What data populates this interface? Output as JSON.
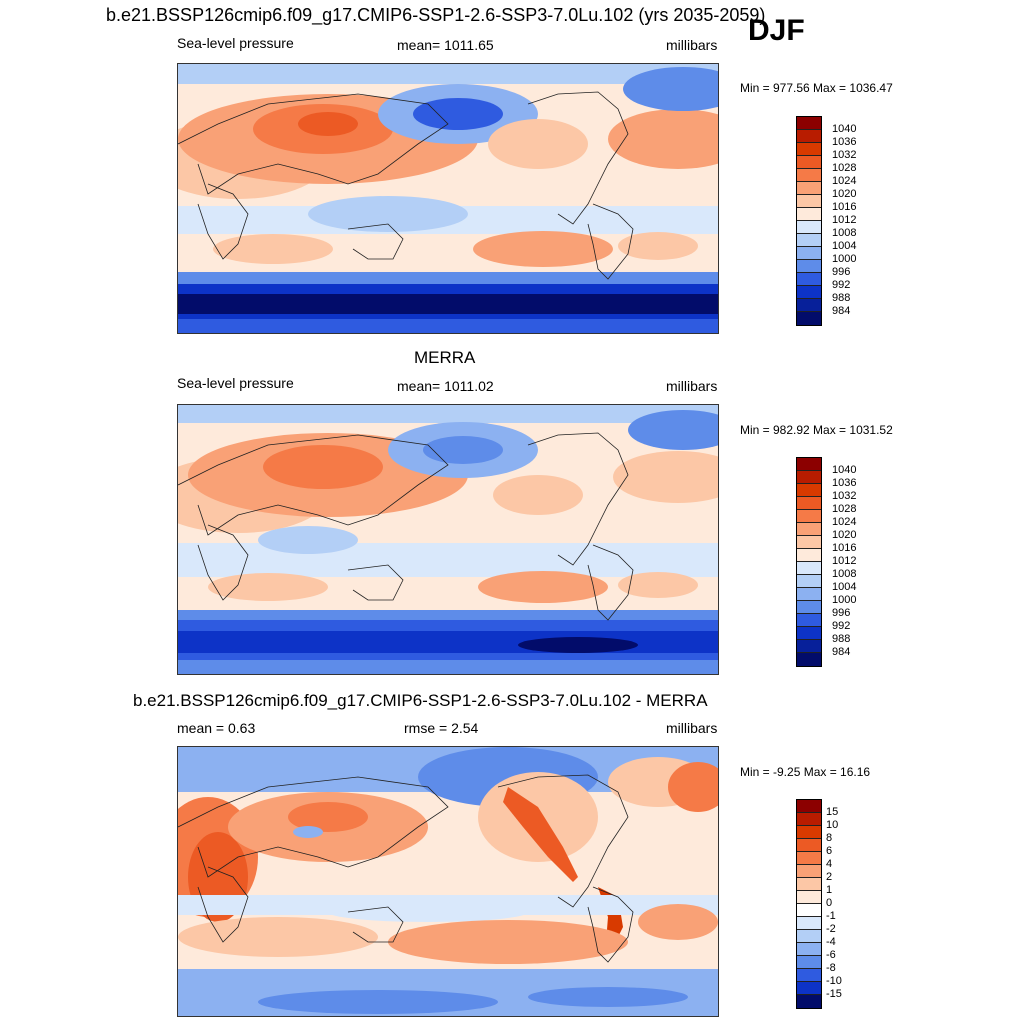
{
  "header": {
    "title": "b.e21.BSSP126cmip6.f09_g17.CMIP6-SSP1-2.6-SSP3-7.0Lu.102 (yrs 2035-2059)",
    "season": "DJF"
  },
  "panels": [
    {
      "title": "",
      "left_label": "Sea-level pressure",
      "center_label": "mean= 1011.65",
      "right_label": "millibars",
      "minmax": "Min = 977.56 Max = 1036.47",
      "colorbar_levels": [
        "1040",
        "1036",
        "1032",
        "1028",
        "1024",
        "1020",
        "1016",
        "1012",
        "1008",
        "1004",
        "1000",
        "996",
        "992",
        "988",
        "984"
      ]
    },
    {
      "title": "MERRA",
      "left_label": "Sea-level pressure",
      "center_label": "mean= 1011.02",
      "right_label": "millibars",
      "minmax": "Min = 982.92 Max = 1031.52",
      "colorbar_levels": [
        "1040",
        "1036",
        "1032",
        "1028",
        "1024",
        "1020",
        "1016",
        "1012",
        "1008",
        "1004",
        "1000",
        "996",
        "992",
        "988",
        "984"
      ]
    },
    {
      "title": "b.e21.BSSP126cmip6.f09_g17.CMIP6-SSP1-2.6-SSP3-7.0Lu.102 - MERRA",
      "left_label": "mean =   0.63",
      "center_label": "rmse =   2.54",
      "right_label": "millibars",
      "minmax": "Min =  -9.25 Max =  16.16",
      "colorbar_levels": [
        "15",
        "10",
        "8",
        "6",
        "4",
        "2",
        "1",
        "0",
        "-1",
        "-2",
        "-4",
        "-6",
        "-8",
        "-10",
        "-15"
      ]
    }
  ],
  "palette": {
    "abs": [
      "#8c0000",
      "#b81c00",
      "#d83a00",
      "#ec5a24",
      "#f57a47",
      "#f9a176",
      "#fcc7a6",
      "#feeadb",
      "#d9e8fb",
      "#b3cff6",
      "#8cb1f1",
      "#5e8ce9",
      "#2f5be0",
      "#0d33c7",
      "#07209a",
      "#020c6a"
    ],
    "diff": [
      "#8c0000",
      "#b81c00",
      "#d83a00",
      "#ec5a24",
      "#f57a47",
      "#f9a176",
      "#fcc7a6",
      "#feeadb",
      "#ffffff",
      "#d9e8fb",
      "#b3cff6",
      "#8cb1f1",
      "#5e8ce9",
      "#2f5be0",
      "#0d33c7",
      "#020c6a"
    ]
  }
}
